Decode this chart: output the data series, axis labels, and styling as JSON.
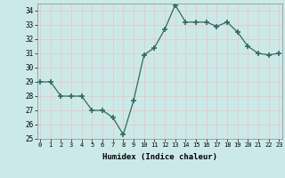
{
  "x": [
    0,
    1,
    2,
    3,
    4,
    5,
    6,
    7,
    8,
    9,
    10,
    11,
    12,
    13,
    14,
    15,
    16,
    17,
    18,
    19,
    20,
    21,
    22,
    23
  ],
  "y": [
    29,
    29,
    28,
    28,
    28,
    27,
    27,
    26.5,
    25.3,
    27.7,
    30.9,
    31.4,
    32.7,
    34.4,
    33.2,
    33.2,
    33.2,
    32.9,
    33.2,
    32.5,
    31.5,
    31.0,
    30.9,
    31.0
  ],
  "line_color": "#2e6b5e",
  "marker_color": "#2e6b5e",
  "bg_color": "#cce9e9",
  "grid_color": "#e8c8c8",
  "xlabel": "Humidex (Indice chaleur)",
  "ylim": [
    25,
    34.5
  ],
  "xlim": [
    -0.3,
    23.3
  ],
  "yticks": [
    25,
    26,
    27,
    28,
    29,
    30,
    31,
    32,
    33,
    34
  ],
  "xticks": [
    0,
    1,
    2,
    3,
    4,
    5,
    6,
    7,
    8,
    9,
    10,
    11,
    12,
    13,
    14,
    15,
    16,
    17,
    18,
    19,
    20,
    21,
    22,
    23
  ],
  "xtick_labels": [
    "0",
    "1",
    "2",
    "3",
    "4",
    "5",
    "6",
    "7",
    "8",
    "9",
    "10",
    "11",
    "12",
    "13",
    "14",
    "15",
    "16",
    "17",
    "18",
    "19",
    "20",
    "21",
    "22",
    "23"
  ]
}
